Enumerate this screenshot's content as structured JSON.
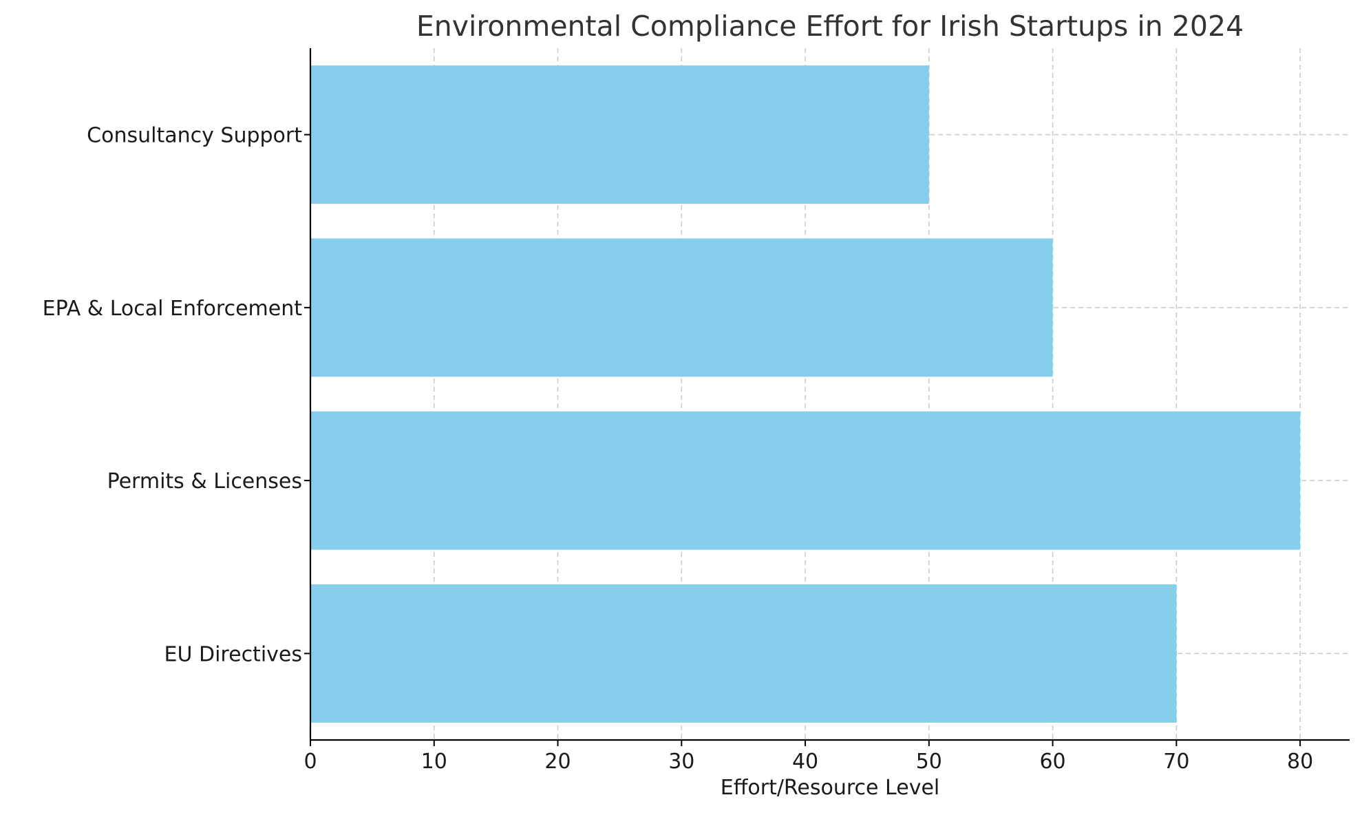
{
  "chart_data": {
    "type": "bar",
    "orientation": "horizontal",
    "title": "Environmental Compliance Effort for Irish Startups in 2024",
    "xlabel": "Effort/Resource Level",
    "ylabel": "",
    "categories": [
      "EU Directives",
      "Permits & Licenses",
      "EPA & Local Enforcement",
      "Consultancy Support"
    ],
    "values": [
      70,
      80,
      60,
      50
    ],
    "xlim": [
      0,
      84
    ],
    "xticks": [
      0,
      10,
      20,
      30,
      40,
      50,
      60,
      70,
      80
    ],
    "grid": true,
    "bar_color": "#87CEEB"
  }
}
